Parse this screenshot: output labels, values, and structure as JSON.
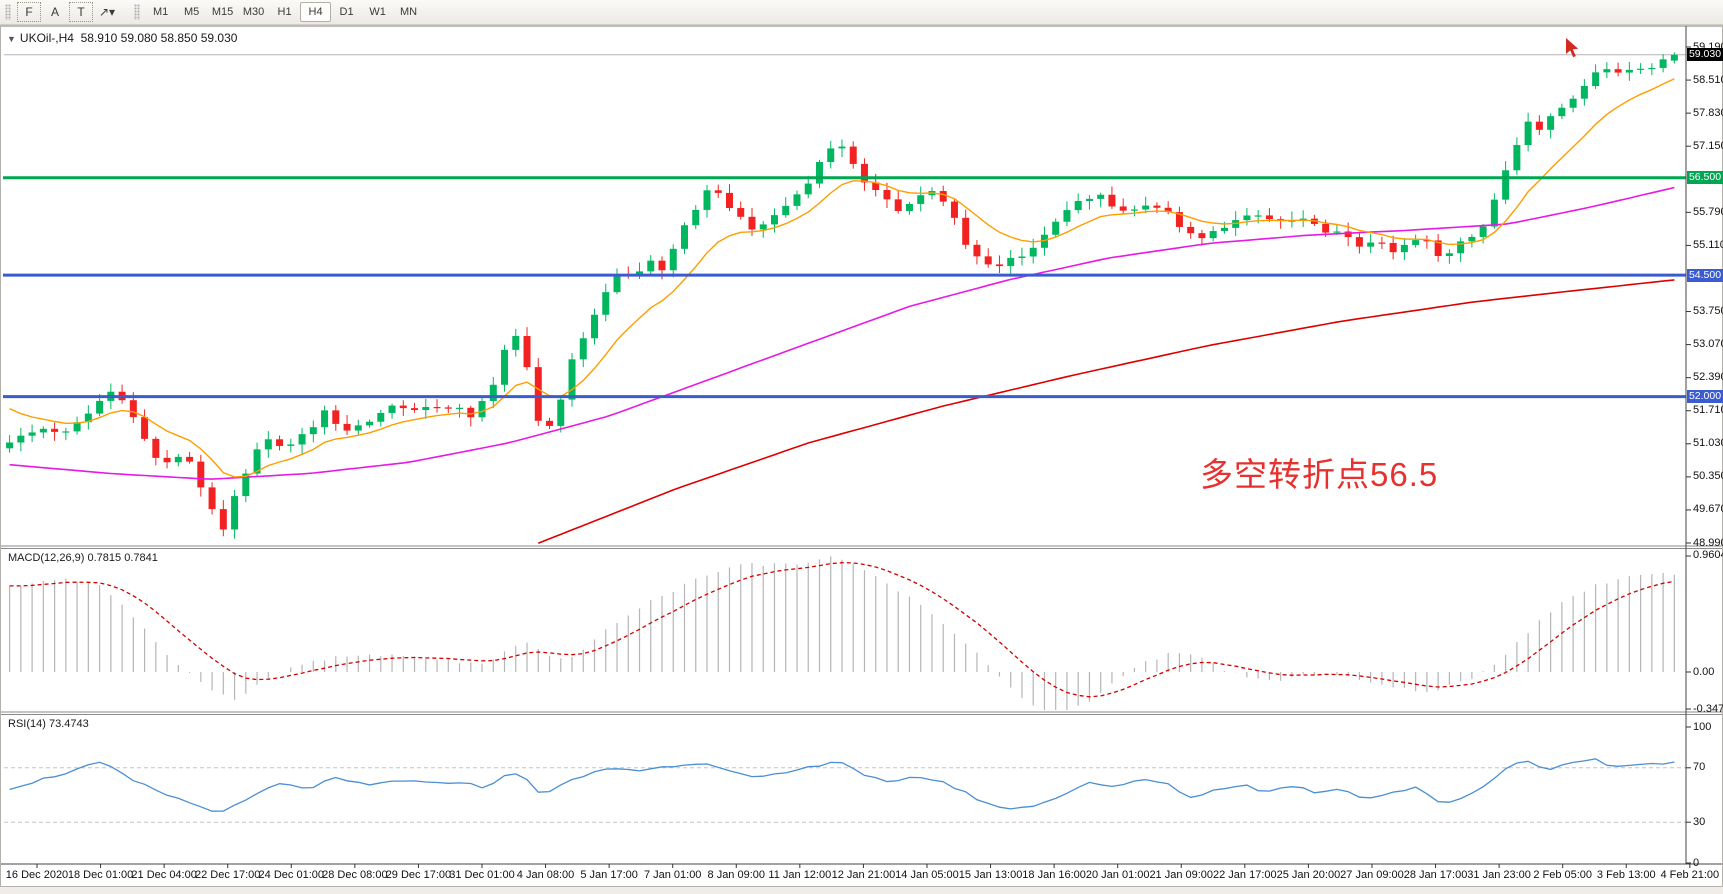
{
  "toolbar": {
    "tool_buttons": [
      {
        "name": "snap-grid",
        "glyph": "F",
        "boxed": true
      },
      {
        "name": "font",
        "glyph": "A",
        "boxed": false
      },
      {
        "name": "text-label",
        "glyph": "T",
        "boxed": true
      },
      {
        "name": "arrows-tool",
        "glyph": "↗▾",
        "boxed": false
      }
    ],
    "timeframes": [
      "M1",
      "M5",
      "M15",
      "M30",
      "H1",
      "H4",
      "D1",
      "W1",
      "MN"
    ],
    "active_timeframe": "H4"
  },
  "chart": {
    "title": {
      "symbol": "UKOil-,H4",
      "ohlc": "58.910 59.080 58.850 59.030"
    },
    "annotation": {
      "text": "多空转折点56.5",
      "color": "#e6312e"
    },
    "colors": {
      "bull": "#00b760",
      "bear": "#f32222",
      "price_line": "#b4b4b4",
      "macd_hist": "#b5b5b5",
      "macd_signal": "#d40000",
      "rsi": "#4a8fd3"
    }
  },
  "chart_data": {
    "type": "candlestick",
    "symbol": "UKOil-",
    "timeframe": "H4",
    "bars": 149,
    "last_ohlc": {
      "open": 58.91,
      "high": 59.08,
      "low": 58.85,
      "close": 59.03
    },
    "price_axis": {
      "min": 48.99,
      "max": 59.19,
      "ticks": [
        {
          "label": "59.190",
          "price": 59.19
        },
        {
          "label": "58.510",
          "price": 58.51
        },
        {
          "label": "57.830",
          "price": 57.83
        },
        {
          "label": "57.150",
          "price": 57.15
        },
        {
          "label": "55.790",
          "price": 55.79
        },
        {
          "label": "55.110",
          "price": 55.11
        },
        {
          "label": "53.750",
          "price": 53.75
        },
        {
          "label": "53.070",
          "price": 53.07
        },
        {
          "label": "52.390",
          "price": 52.39
        },
        {
          "label": "51.710",
          "price": 51.71
        },
        {
          "label": "51.030",
          "price": 51.03
        },
        {
          "label": "50.350",
          "price": 50.35
        },
        {
          "label": "49.670",
          "price": 49.67
        },
        {
          "label": "48.990",
          "price": 48.99
        }
      ],
      "badges": [
        {
          "label": "59.030",
          "price": 59.03,
          "bg": "#000000"
        },
        {
          "label": "56.500",
          "price": 56.5,
          "bg": "#00a651"
        },
        {
          "label": "54.500",
          "price": 54.5,
          "bg": "#3b5bd0"
        },
        {
          "label": "52.000",
          "price": 52.0,
          "bg": "#3b5bd0"
        }
      ]
    },
    "hlines": [
      {
        "label": "56.500",
        "price": 56.5,
        "color": "#00a651"
      },
      {
        "label": "54.500",
        "price": 54.5,
        "color": "#3b5bd0"
      },
      {
        "label": "52.000",
        "price": 52.0,
        "color": "#3b5bd0"
      }
    ],
    "current_price_line": {
      "price": 59.03
    },
    "price_path_anchors": [
      [
        0.0,
        51.15
      ],
      [
        0.02,
        51.4
      ],
      [
        0.035,
        51.3
      ],
      [
        0.05,
        51.75
      ],
      [
        0.058,
        52.1
      ],
      [
        0.065,
        52.15
      ],
      [
        0.075,
        51.55
      ],
      [
        0.085,
        50.75
      ],
      [
        0.095,
        50.55
      ],
      [
        0.105,
        50.9
      ],
      [
        0.113,
        50.3
      ],
      [
        0.122,
        49.6
      ],
      [
        0.128,
        49.2
      ],
      [
        0.135,
        49.9
      ],
      [
        0.143,
        50.45
      ],
      [
        0.152,
        51.25
      ],
      [
        0.16,
        50.9
      ],
      [
        0.17,
        51.05
      ],
      [
        0.18,
        51.3
      ],
      [
        0.19,
        51.7
      ],
      [
        0.2,
        51.3
      ],
      [
        0.212,
        51.45
      ],
      [
        0.222,
        51.6
      ],
      [
        0.232,
        51.8
      ],
      [
        0.245,
        51.65
      ],
      [
        0.255,
        51.75
      ],
      [
        0.268,
        51.85
      ],
      [
        0.278,
        51.55
      ],
      [
        0.29,
        52.2
      ],
      [
        0.298,
        53.0
      ],
      [
        0.304,
        53.2
      ],
      [
        0.312,
        52.45
      ],
      [
        0.318,
        51.45
      ],
      [
        0.327,
        51.3
      ],
      [
        0.337,
        52.6
      ],
      [
        0.347,
        53.4
      ],
      [
        0.357,
        54.1
      ],
      [
        0.366,
        54.55
      ],
      [
        0.374,
        54.3
      ],
      [
        0.384,
        54.85
      ],
      [
        0.393,
        54.55
      ],
      [
        0.403,
        55.4
      ],
      [
        0.413,
        55.9
      ],
      [
        0.421,
        56.3
      ],
      [
        0.43,
        56.0
      ],
      [
        0.44,
        55.65
      ],
      [
        0.45,
        55.45
      ],
      [
        0.46,
        55.8
      ],
      [
        0.47,
        56.1
      ],
      [
        0.48,
        56.45
      ],
      [
        0.49,
        57.05
      ],
      [
        0.497,
        57.3
      ],
      [
        0.505,
        56.85
      ],
      [
        0.515,
        56.3
      ],
      [
        0.525,
        56.05
      ],
      [
        0.535,
        55.8
      ],
      [
        0.545,
        56.15
      ],
      [
        0.555,
        56.3
      ],
      [
        0.565,
        55.85
      ],
      [
        0.575,
        55.05
      ],
      [
        0.585,
        54.75
      ],
      [
        0.595,
        54.65
      ],
      [
        0.605,
        54.9
      ],
      [
        0.615,
        55.15
      ],
      [
        0.625,
        55.45
      ],
      [
        0.635,
        55.8
      ],
      [
        0.645,
        56.05
      ],
      [
        0.653,
        56.25
      ],
      [
        0.663,
        55.95
      ],
      [
        0.673,
        55.8
      ],
      [
        0.683,
        56.0
      ],
      [
        0.693,
        55.9
      ],
      [
        0.703,
        55.55
      ],
      [
        0.713,
        55.15
      ],
      [
        0.723,
        55.35
      ],
      [
        0.733,
        55.55
      ],
      [
        0.748,
        55.7
      ],
      [
        0.762,
        55.55
      ],
      [
        0.775,
        55.65
      ],
      [
        0.788,
        55.45
      ],
      [
        0.8,
        55.35
      ],
      [
        0.81,
        55.1
      ],
      [
        0.82,
        55.25
      ],
      [
        0.83,
        54.95
      ],
      [
        0.84,
        55.15
      ],
      [
        0.85,
        55.3
      ],
      [
        0.86,
        54.85
      ],
      [
        0.87,
        55.2
      ],
      [
        0.88,
        55.35
      ],
      [
        0.888,
        55.6
      ],
      [
        0.896,
        56.45
      ],
      [
        0.904,
        57.1
      ],
      [
        0.912,
        57.65
      ],
      [
        0.92,
        57.45
      ],
      [
        0.93,
        57.9
      ],
      [
        0.94,
        58.2
      ],
      [
        0.95,
        58.6
      ],
      [
        0.958,
        58.75
      ],
      [
        0.966,
        58.55
      ],
      [
        0.975,
        58.8
      ],
      [
        0.985,
        58.7
      ],
      [
        0.993,
        58.9
      ],
      [
        1.0,
        59.03
      ]
    ],
    "ma_fast": {
      "color": "#ff9d00",
      "period": 10
    },
    "ma_mid": {
      "color": "#e619e6",
      "anchors": [
        [
          0.0,
          50.6
        ],
        [
          0.06,
          50.42
        ],
        [
          0.12,
          50.3
        ],
        [
          0.18,
          50.42
        ],
        [
          0.24,
          50.65
        ],
        [
          0.3,
          51.05
        ],
        [
          0.36,
          51.6
        ],
        [
          0.42,
          52.35
        ],
        [
          0.48,
          53.1
        ],
        [
          0.54,
          53.85
        ],
        [
          0.6,
          54.4
        ],
        [
          0.66,
          54.85
        ],
        [
          0.72,
          55.15
        ],
        [
          0.78,
          55.32
        ],
        [
          0.84,
          55.42
        ],
        [
          0.9,
          55.55
        ],
        [
          0.95,
          55.9
        ],
        [
          1.0,
          56.3
        ]
      ]
    },
    "ma_slow": {
      "color": "#dd0000",
      "anchors": [
        [
          0.315,
          48.95
        ],
        [
          0.4,
          50.1
        ],
        [
          0.48,
          51.05
        ],
        [
          0.56,
          51.8
        ],
        [
          0.64,
          52.45
        ],
        [
          0.72,
          53.05
        ],
        [
          0.8,
          53.55
        ],
        [
          0.88,
          53.95
        ],
        [
          0.94,
          54.18
        ],
        [
          1.0,
          54.4
        ]
      ]
    },
    "macd": {
      "label": "MACD(12,26,9)",
      "value": "0.7815",
      "signal_value": "0.7841",
      "axis": [
        {
          "label": "0.9604",
          "v": 0.9604
        },
        {
          "label": "0.00",
          "v": 0
        },
        {
          "label": "-0.3473",
          "v": -0.3473
        }
      ],
      "anchors": [
        [
          0.0,
          0.7
        ],
        [
          0.03,
          0.78
        ],
        [
          0.055,
          0.72
        ],
        [
          0.075,
          0.45
        ],
        [
          0.095,
          0.12
        ],
        [
          0.11,
          -0.02
        ],
        [
          0.125,
          -0.18
        ],
        [
          0.135,
          -0.22
        ],
        [
          0.15,
          -0.1
        ],
        [
          0.165,
          0.02
        ],
        [
          0.185,
          0.1
        ],
        [
          0.21,
          0.14
        ],
        [
          0.235,
          0.13
        ],
        [
          0.26,
          0.1
        ],
        [
          0.285,
          0.06
        ],
        [
          0.3,
          0.18
        ],
        [
          0.31,
          0.24
        ],
        [
          0.322,
          0.14
        ],
        [
          0.333,
          0.1
        ],
        [
          0.348,
          0.22
        ],
        [
          0.365,
          0.42
        ],
        [
          0.385,
          0.58
        ],
        [
          0.405,
          0.72
        ],
        [
          0.425,
          0.84
        ],
        [
          0.445,
          0.9
        ],
        [
          0.465,
          0.88
        ],
        [
          0.48,
          0.92
        ],
        [
          0.49,
          0.9604
        ],
        [
          0.505,
          0.9
        ],
        [
          0.52,
          0.8
        ],
        [
          0.545,
          0.58
        ],
        [
          0.565,
          0.35
        ],
        [
          0.585,
          0.1
        ],
        [
          0.6,
          -0.12
        ],
        [
          0.615,
          -0.28
        ],
        [
          0.625,
          -0.3473
        ],
        [
          0.64,
          -0.3
        ],
        [
          0.655,
          -0.18
        ],
        [
          0.67,
          -0.02
        ],
        [
          0.685,
          0.1
        ],
        [
          0.7,
          0.16
        ],
        [
          0.715,
          0.12
        ],
        [
          0.73,
          0.02
        ],
        [
          0.745,
          -0.05
        ],
        [
          0.76,
          -0.08
        ],
        [
          0.775,
          -0.04
        ],
        [
          0.79,
          0.01
        ],
        [
          0.805,
          -0.04
        ],
        [
          0.82,
          -0.1
        ],
        [
          0.835,
          -0.14
        ],
        [
          0.85,
          -0.16
        ],
        [
          0.865,
          -0.12
        ],
        [
          0.88,
          -0.05
        ],
        [
          0.893,
          0.08
        ],
        [
          0.908,
          0.28
        ],
        [
          0.923,
          0.48
        ],
        [
          0.938,
          0.62
        ],
        [
          0.953,
          0.72
        ],
        [
          0.968,
          0.78
        ],
        [
          0.984,
          0.81
        ],
        [
          1.0,
          0.82
        ]
      ]
    },
    "rsi": {
      "label": "RSI(14)",
      "value": "73.4743",
      "levels": [
        70,
        30
      ],
      "axis": [
        {
          "label": "100",
          "v": 100
        },
        {
          "label": "70",
          "v": 70
        },
        {
          "label": "30",
          "v": 30
        },
        {
          "label": "0",
          "v": 0
        }
      ],
      "anchors": [
        [
          0.0,
          55
        ],
        [
          0.03,
          65
        ],
        [
          0.055,
          74
        ],
        [
          0.075,
          60
        ],
        [
          0.095,
          50
        ],
        [
          0.113,
          42
        ],
        [
          0.128,
          37
        ],
        [
          0.145,
          48
        ],
        [
          0.16,
          58
        ],
        [
          0.18,
          55
        ],
        [
          0.195,
          62
        ],
        [
          0.215,
          57
        ],
        [
          0.235,
          61
        ],
        [
          0.255,
          58
        ],
        [
          0.27,
          60
        ],
        [
          0.285,
          55
        ],
        [
          0.3,
          67
        ],
        [
          0.312,
          60
        ],
        [
          0.32,
          50
        ],
        [
          0.34,
          62
        ],
        [
          0.36,
          70
        ],
        [
          0.38,
          68
        ],
        [
          0.4,
          72
        ],
        [
          0.42,
          74
        ],
        [
          0.435,
          66
        ],
        [
          0.45,
          62
        ],
        [
          0.465,
          66
        ],
        [
          0.48,
          70
        ],
        [
          0.497,
          76
        ],
        [
          0.515,
          64
        ],
        [
          0.53,
          58
        ],
        [
          0.545,
          64
        ],
        [
          0.56,
          60
        ],
        [
          0.58,
          48
        ],
        [
          0.595,
          40
        ],
        [
          0.618,
          42
        ],
        [
          0.635,
          52
        ],
        [
          0.65,
          60
        ],
        [
          0.665,
          55
        ],
        [
          0.68,
          62
        ],
        [
          0.695,
          58
        ],
        [
          0.71,
          48
        ],
        [
          0.725,
          54
        ],
        [
          0.74,
          58
        ],
        [
          0.755,
          52
        ],
        [
          0.77,
          57
        ],
        [
          0.785,
          52
        ],
        [
          0.8,
          55
        ],
        [
          0.815,
          47
        ],
        [
          0.83,
          52
        ],
        [
          0.845,
          55
        ],
        [
          0.86,
          44
        ],
        [
          0.868,
          46
        ],
        [
          0.88,
          52
        ],
        [
          0.893,
          63
        ],
        [
          0.9,
          72
        ],
        [
          0.91,
          76
        ],
        [
          0.922,
          68
        ],
        [
          0.932,
          72
        ],
        [
          0.942,
          74
        ],
        [
          0.952,
          78
        ],
        [
          0.962,
          70
        ],
        [
          0.972,
          72
        ],
        [
          0.982,
          74
        ],
        [
          0.99,
          71
        ],
        [
          1.0,
          73.5
        ]
      ]
    },
    "time_labels": [
      "16 Dec 2020",
      "18 Dec 01:00",
      "21 Dec 04:00",
      "22 Dec 17:00",
      "24 Dec 01:00",
      "28 Dec 08:00",
      "29 Dec 17:00",
      "31 Dec 01:00",
      "4 Jan 08:00",
      "5 Jan 17:00",
      "7 Jan 01:00",
      "8 Jan 09:00",
      "11 Jan 12:00",
      "12 Jan 21:00",
      "14 Jan 05:00",
      "15 Jan 13:00",
      "18 Jan 16:00",
      "20 Jan 01:00",
      "21 Jan 09:00",
      "22 Jan 17:00",
      "25 Jan 20:00",
      "27 Jan 09:00",
      "28 Jan 17:00",
      "31 Jan 23:00",
      "2 Feb 05:00",
      "3 Feb 13:00",
      "4 Feb 21:00"
    ]
  }
}
